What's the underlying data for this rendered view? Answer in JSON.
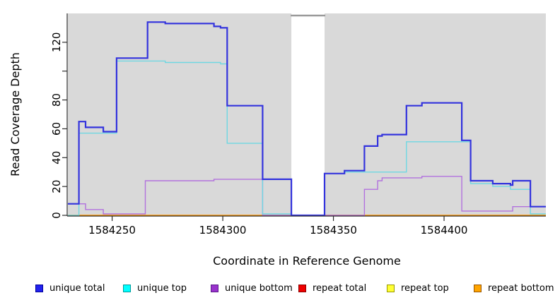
{
  "chart_data": {
    "type": "line",
    "subtype": "step",
    "title": "",
    "xlabel": "Coordinate in Reference Genome",
    "ylabel": "Read Coverage Depth",
    "xlim": [
      1584230,
      1584446
    ],
    "ylim": [
      0,
      140
    ],
    "x_ticks": [
      1584250,
      1584300,
      1584350,
      1584400
    ],
    "x_tick_labels": [
      "1584250",
      "1584300",
      "1584350",
      "1584400"
    ],
    "y_ticks": [
      0,
      20,
      40,
      60,
      80,
      100,
      120
    ],
    "y_tick_labels": [
      "0",
      "20",
      "40",
      "60",
      "80",
      "",
      "120"
    ],
    "grid": "off",
    "legend_position": "bottom",
    "panel_color": "#D9D9D9",
    "gap_band": {
      "from": 1584331,
      "to": 1584346,
      "color": "#FFFFFF",
      "top_connector_color": "#9A9A9A"
    },
    "background_regions": [
      {
        "from": 1584230,
        "to": 1584331
      },
      {
        "from": 1584346,
        "to": 1584446
      }
    ],
    "axis_color": "#2B2B2B",
    "series": [
      {
        "name": "repeat top",
        "color": "#E8E800",
        "width": 1.4,
        "points": [
          [
            1584230,
            0
          ],
          [
            1584446,
            0
          ]
        ]
      },
      {
        "name": "repeat total",
        "color": "#D02040",
        "width": 1.4,
        "points": [
          [
            1584230,
            0
          ],
          [
            1584446,
            0
          ]
        ]
      },
      {
        "name": "repeat bottom",
        "color": "#FFA518",
        "width": 1.8,
        "points": [
          [
            1584230,
            0
          ],
          [
            1584446,
            0
          ]
        ]
      },
      {
        "name": "unique bottom",
        "color": "#B272DE",
        "width": 1.4,
        "points": [
          [
            1584230,
            8
          ],
          [
            1584238,
            4
          ],
          [
            1584246,
            1
          ],
          [
            1584265,
            24
          ],
          [
            1584296,
            25
          ],
          [
            1584318,
            0
          ],
          [
            1584364,
            18
          ],
          [
            1584370,
            24
          ],
          [
            1584372,
            26
          ],
          [
            1584390,
            27
          ],
          [
            1584408,
            3
          ],
          [
            1584431,
            6
          ],
          [
            1584446,
            6
          ]
        ]
      },
      {
        "name": "unique top",
        "color": "#6FD8E2",
        "width": 1.4,
        "points": [
          [
            1584230,
            0
          ],
          [
            1584235,
            57
          ],
          [
            1584252,
            107
          ],
          [
            1584274,
            106
          ],
          [
            1584299,
            105
          ],
          [
            1584302,
            50
          ],
          [
            1584318,
            1
          ],
          [
            1584331,
            0
          ],
          [
            1584346,
            29
          ],
          [
            1584355,
            30
          ],
          [
            1584383,
            51
          ],
          [
            1584412,
            22
          ],
          [
            1584422,
            20
          ],
          [
            1584430,
            18
          ],
          [
            1584439,
            1
          ],
          [
            1584446,
            1
          ]
        ]
      },
      {
        "name": "unique total",
        "color": "#3333DD",
        "width": 2.2,
        "points": [
          [
            1584230,
            8
          ],
          [
            1584235,
            65
          ],
          [
            1584238,
            61
          ],
          [
            1584246,
            58
          ],
          [
            1584252,
            109
          ],
          [
            1584266,
            134
          ],
          [
            1584274,
            133
          ],
          [
            1584296,
            131
          ],
          [
            1584299,
            130
          ],
          [
            1584302,
            76
          ],
          [
            1584318,
            25
          ],
          [
            1584331,
            0
          ],
          [
            1584346,
            29
          ],
          [
            1584355,
            31
          ],
          [
            1584364,
            48
          ],
          [
            1584370,
            55
          ],
          [
            1584372,
            56
          ],
          [
            1584383,
            76
          ],
          [
            1584390,
            78
          ],
          [
            1584408,
            52
          ],
          [
            1584412,
            24
          ],
          [
            1584422,
            22
          ],
          [
            1584430,
            21
          ],
          [
            1584431,
            24
          ],
          [
            1584439,
            6
          ],
          [
            1584446,
            6
          ]
        ]
      }
    ],
    "legend": [
      {
        "label": "unique total",
        "color": "#2222EE",
        "border": "#000099"
      },
      {
        "label": "unique top",
        "color": "#00FFFF",
        "border": "#009999"
      },
      {
        "label": "unique bottom",
        "color": "#9933CC",
        "border": "#5B1A8A"
      },
      {
        "label": "repeat total",
        "color": "#EE0000",
        "border": "#8B0000"
      },
      {
        "label": "repeat top",
        "color": "#FFFF33",
        "border": "#999900"
      },
      {
        "label": "repeat bottom",
        "color": "#FFA500",
        "border": "#995500"
      }
    ]
  }
}
